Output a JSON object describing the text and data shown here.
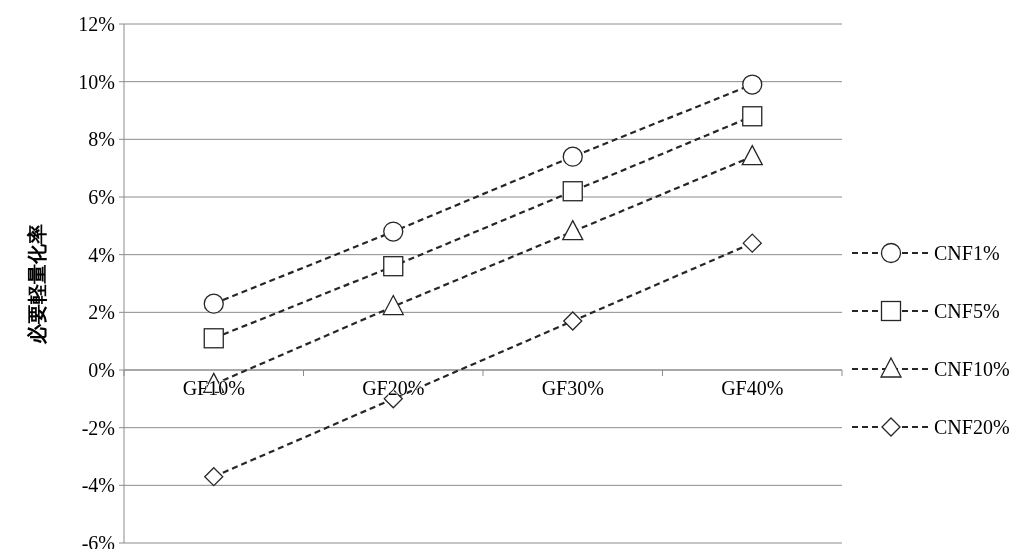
{
  "chart_data": {
    "type": "line",
    "ylabel": "必要軽量化率",
    "categories": [
      "GF10%",
      "GF20%",
      "GF30%",
      "GF40%"
    ],
    "ylim": [
      -6,
      12
    ],
    "yticks": [
      {
        "value": -6,
        "label": "-6%"
      },
      {
        "value": -4,
        "label": "-4%"
      },
      {
        "value": -2,
        "label": "-2%"
      },
      {
        "value": 0,
        "label": "0%"
      },
      {
        "value": 2,
        "label": "2%"
      },
      {
        "value": 4,
        "label": "4%"
      },
      {
        "value": 6,
        "label": "6%"
      },
      {
        "value": 8,
        "label": "8%"
      },
      {
        "value": 10,
        "label": "10%"
      },
      {
        "value": 12,
        "label": "12%"
      }
    ],
    "grid": "y",
    "legend": "right",
    "line_style": "dashed",
    "series": [
      {
        "name": "CNF1%",
        "color": "#262626",
        "marker": "circle",
        "values": [
          2.3,
          4.8,
          7.4,
          9.9
        ]
      },
      {
        "name": "CNF5%",
        "color": "#262626",
        "marker": "square",
        "values": [
          1.1,
          3.6,
          6.2,
          8.8
        ]
      },
      {
        "name": "CNF10%",
        "color": "#262626",
        "marker": "triangle",
        "values": [
          -0.5,
          2.2,
          4.8,
          7.4
        ]
      },
      {
        "name": "CNF20%",
        "color": "#262626",
        "marker": "diamond",
        "values": [
          -3.7,
          -1.0,
          1.7,
          4.4
        ]
      }
    ]
  }
}
